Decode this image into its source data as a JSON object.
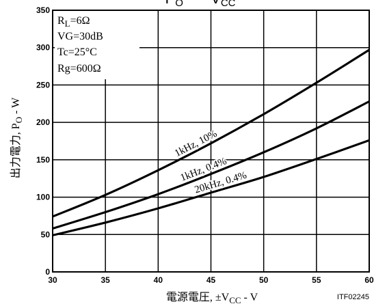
{
  "chart_data": {
    "type": "line",
    "title_parts": {
      "p": "P",
      "p_sub": "O",
      "dash": "–",
      "v": "V",
      "v_sub": "CC"
    },
    "xlabel_parts": {
      "prefix": "電源電圧, ±V",
      "sub": "CC",
      "suffix": " - V"
    },
    "ylabel_parts": {
      "prefix": "出力電力, P",
      "sub": "O",
      "suffix": " - W"
    },
    "xlim": [
      30,
      60
    ],
    "ylim": [
      0,
      350
    ],
    "x_ticks": [
      30,
      35,
      40,
      45,
      50,
      55,
      60
    ],
    "y_ticks": [
      0,
      50,
      100,
      150,
      200,
      250,
      300,
      350
    ],
    "grid": true,
    "conditions": {
      "rl": {
        "main": "R",
        "sub": "L",
        "rest": "=6Ω"
      },
      "vg": "VG=30dB",
      "tc": "Tc=25°C",
      "rg": "Rg=600Ω"
    },
    "series": [
      {
        "name": "1kHz, 10%",
        "x": [
          30,
          35,
          40,
          45,
          50,
          55,
          60
        ],
        "y": [
          74,
          103,
          136,
          172,
          211,
          253,
          297
        ]
      },
      {
        "name": "1kHz, 0.4%",
        "x": [
          30,
          35,
          40,
          45,
          50,
          55,
          60
        ],
        "y": [
          58,
          80,
          104,
          131,
          160,
          192,
          228
        ]
      },
      {
        "name": "20kHz, 0.4%",
        "x": [
          30,
          35,
          40,
          45,
          50,
          55,
          60
        ],
        "y": [
          49,
          66,
          85,
          106,
          127,
          151,
          176
        ]
      }
    ],
    "figure_id": "ITF02245"
  }
}
